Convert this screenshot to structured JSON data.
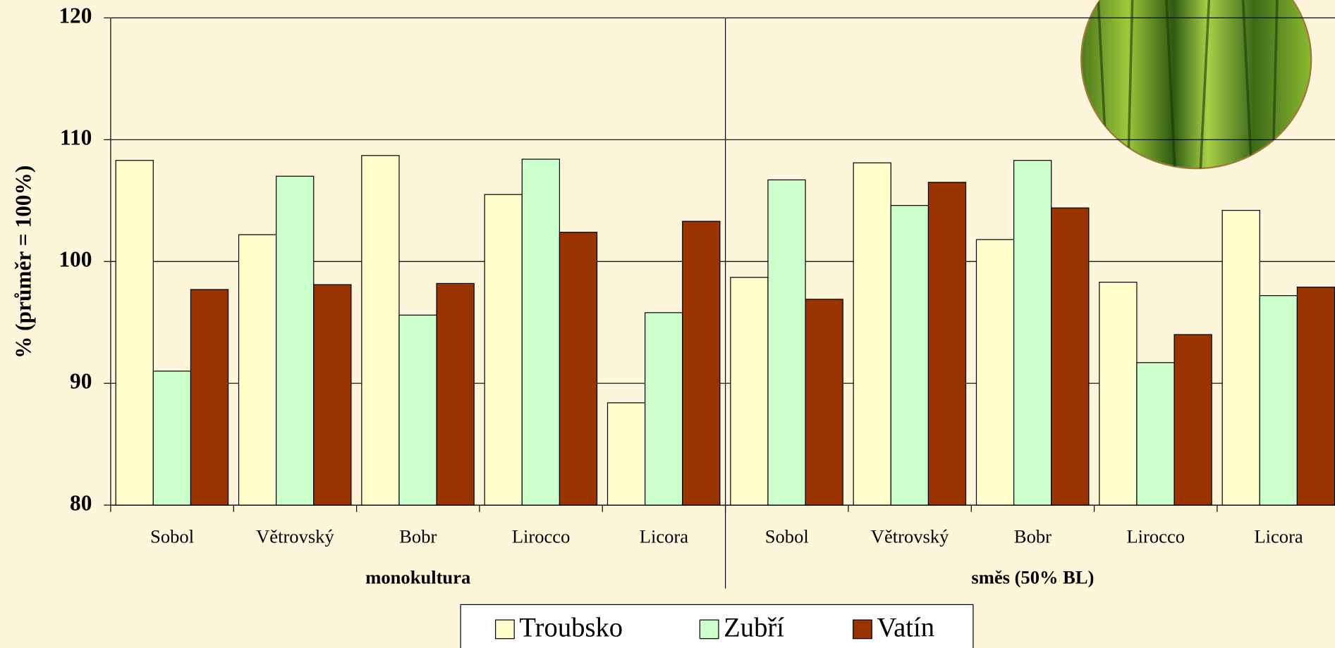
{
  "chart_data": {
    "type": "bar",
    "ylabel": "% (průměr = 100%)",
    "groups": [
      "monokultura",
      "směs (50% BL)"
    ],
    "categories": [
      "Sobol",
      "Větrovský",
      "Bobr",
      "Lirocco",
      "Licora",
      "Sobol",
      "Větrovský",
      "Bobr",
      "Lirocco",
      "Licora"
    ],
    "series": [
      {
        "name": "Troubsko",
        "color": "#ffffcc",
        "values": [
          108.3,
          102.2,
          108.7,
          105.5,
          88.4,
          98.7,
          108.1,
          101.8,
          98.3,
          104.2
        ]
      },
      {
        "name": "Zubří",
        "color": "#ccffcc",
        "values": [
          91.0,
          107.0,
          95.6,
          108.4,
          95.8,
          106.7,
          104.6,
          108.3,
          91.7,
          97.2
        ]
      },
      {
        "name": "Vatín",
        "color": "#993300",
        "values": [
          97.7,
          98.1,
          98.2,
          102.4,
          103.3,
          96.9,
          106.5,
          104.4,
          94.0,
          97.9
        ]
      }
    ],
    "ylim": [
      80,
      120
    ],
    "yticks": [
      80,
      90,
      100,
      110,
      120
    ],
    "grid": true
  }
}
